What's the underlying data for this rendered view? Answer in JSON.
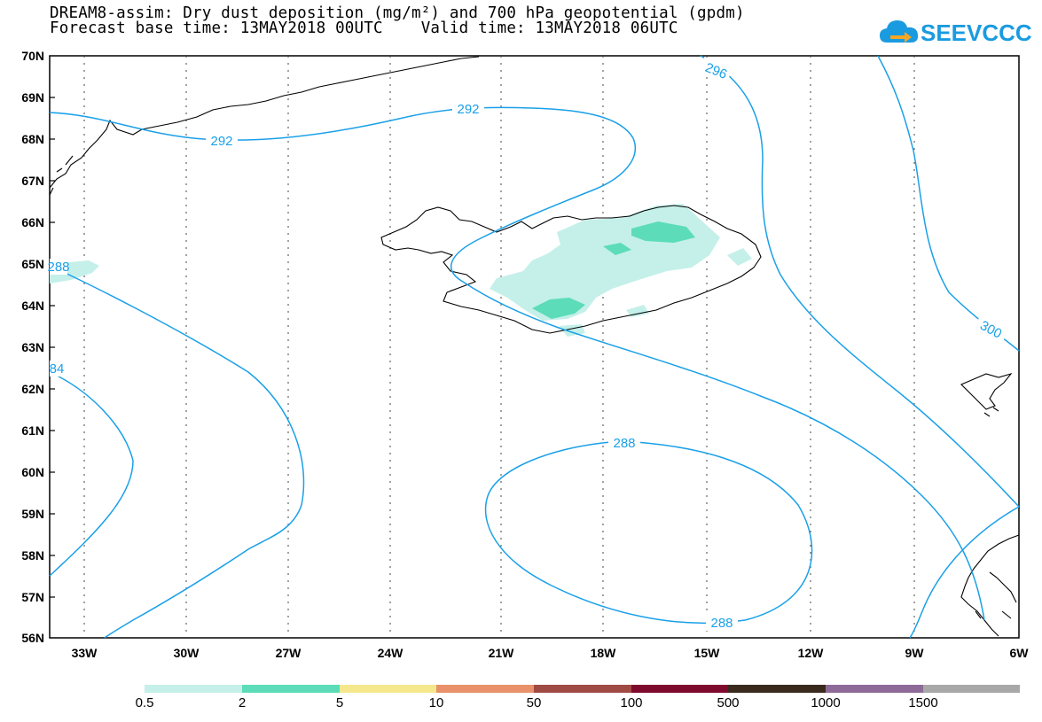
{
  "title": {
    "line1": "DREAM8-assim: Dry dust deposition (mg/m²) and 700 hPa geopotential (gpdm)",
    "line2": "Forecast base time: 13MAY2018 00UTC    Valid time: 13MAY2018 06UTC"
  },
  "logo": {
    "text": "SEEVCCC",
    "icon": "cloud-arrow-icon",
    "color": "#1a9be0"
  },
  "axes": {
    "lat_labels": [
      "70N",
      "69N",
      "68N",
      "67N",
      "66N",
      "65N",
      "64N",
      "63N",
      "62N",
      "61N",
      "60N",
      "59N",
      "58N",
      "57N",
      "56N"
    ],
    "lon_labels": [
      "33W",
      "30W",
      "27W",
      "24W",
      "21W",
      "18W",
      "15W",
      "12W",
      "9W",
      "6W"
    ]
  },
  "contours": {
    "labels": [
      "296",
      "292",
      "292",
      "288",
      "84",
      "300",
      "288",
      "288"
    ],
    "color": "#1aa0e8"
  },
  "legend": {
    "colors": [
      "#c4f0e9",
      "#5cdcb8",
      "#f5e88c",
      "#e8916a",
      "#a04a44",
      "#7e0a2e",
      "#3a2a1e",
      "#8e6a98",
      "#a8a8a8"
    ],
    "labels": [
      "0.5",
      "2",
      "5",
      "10",
      "50",
      "100",
      "500",
      "1000",
      "1500"
    ]
  }
}
